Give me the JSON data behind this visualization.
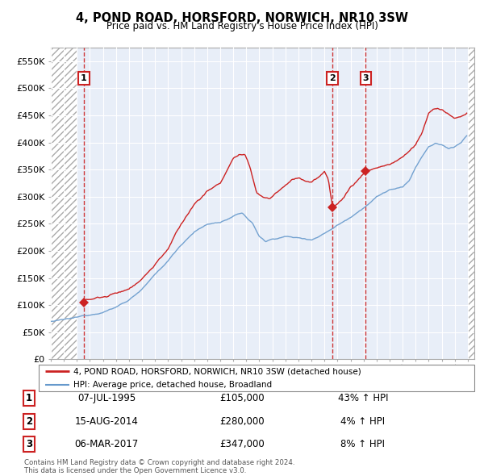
{
  "title": "4, POND ROAD, HORSFORD, NORWICH, NR10 3SW",
  "subtitle": "Price paid vs. HM Land Registry's House Price Index (HPI)",
  "ylim": [
    0,
    575000
  ],
  "yticks": [
    0,
    50000,
    100000,
    150000,
    200000,
    250000,
    300000,
    350000,
    400000,
    450000,
    500000,
    550000
  ],
  "ytick_labels": [
    "£0",
    "£50K",
    "£100K",
    "£150K",
    "£200K",
    "£250K",
    "£300K",
    "£350K",
    "£400K",
    "£450K",
    "£500K",
    "£550K"
  ],
  "vline_dates": [
    1995.54,
    2014.62,
    2017.17
  ],
  "marker_labels": [
    "1",
    "2",
    "3"
  ],
  "red_line_color": "#cc2222",
  "blue_line_color": "#6699cc",
  "chart_bg_color": "#e8eef8",
  "hatch_bg_color": "#d0d8e8",
  "legend_entries": [
    "4, POND ROAD, HORSFORD, NORWICH, NR10 3SW (detached house)",
    "HPI: Average price, detached house, Broadland"
  ],
  "table_rows": [
    [
      "1",
      "07-JUL-1995",
      "£105,000",
      "43% ↑ HPI"
    ],
    [
      "2",
      "15-AUG-2014",
      "£280,000",
      "4% ↑ HPI"
    ],
    [
      "3",
      "06-MAR-2017",
      "£347,000",
      "8% ↑ HPI"
    ]
  ],
  "footer": "Contains HM Land Registry data © Crown copyright and database right 2024.\nThis data is licensed under the Open Government Licence v3.0.",
  "xlim_start": 1993.0,
  "xlim_end": 2025.5,
  "hatch_left_end": 1995.0,
  "hatch_right_start": 2025.0
}
